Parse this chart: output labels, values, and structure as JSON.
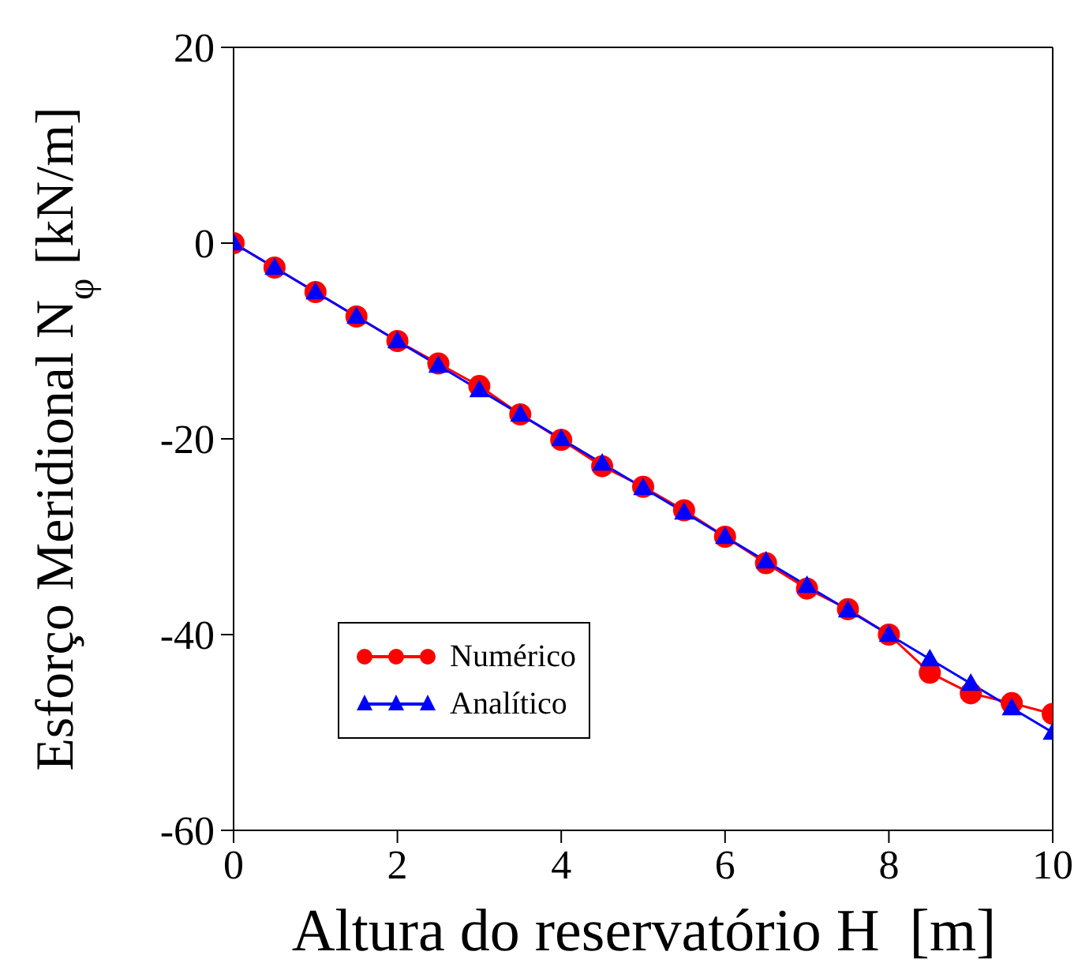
{
  "chart_data": {
    "type": "line",
    "xlabel": "Altura do reservatório H  [m]",
    "ylabel": "Esforço Meridional N$_{φ}$ [kN/m]",
    "x": [
      0,
      0.5,
      1,
      1.5,
      2,
      2.5,
      3,
      3.5,
      4,
      4.5,
      5,
      5.5,
      6,
      6.5,
      7,
      7.5,
      8,
      8.5,
      9,
      9.5,
      10
    ],
    "series": [
      {
        "name": "Numérico",
        "color": "#ff0000",
        "marker": "circle",
        "values": [
          0,
          -2.5,
          -5,
          -7.5,
          -10,
          -12.3,
          -14.6,
          -17.5,
          -20.1,
          -22.8,
          -24.9,
          -27.3,
          -30,
          -32.7,
          -35.3,
          -37.4,
          -40,
          -43.9,
          -46,
          -47,
          -48.1
        ]
      },
      {
        "name": "Analítico",
        "color": "#0000ff",
        "marker": "triangle",
        "values": [
          0,
          -2.5,
          -5,
          -7.5,
          -10,
          -12.5,
          -15,
          -17.5,
          -20,
          -22.5,
          -25,
          -27.5,
          -30,
          -32.5,
          -35,
          -37.5,
          -40,
          -42.5,
          -45,
          -47.5,
          -50
        ]
      }
    ],
    "xlim": [
      0,
      10
    ],
    "xticks": [
      0,
      2,
      4,
      6,
      8,
      10
    ],
    "ylim": [
      -60,
      20
    ],
    "yticks": [
      -60,
      -40,
      -20,
      0,
      20
    ],
    "grid": false,
    "legend": "bottom left",
    "line_style": "solid"
  }
}
